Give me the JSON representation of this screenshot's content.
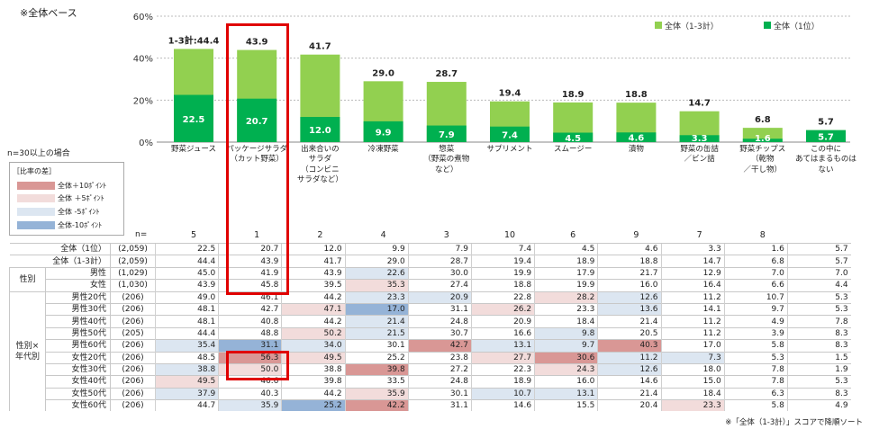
{
  "header": {
    "base_label": "※全体ベース"
  },
  "condition_note": "n=30以上の場合",
  "legend": {
    "title": "［比率の差］",
    "items": [
      {
        "label": "全体＋10ﾎﾟｲﾝﾄ",
        "color": "#d99795"
      },
      {
        "label": "全体 ＋5ﾎﾟｲﾝﾄ",
        "color": "#f2dcdb"
      },
      {
        "label": "全体 -5ﾎﾟｲﾝﾄ",
        "color": "#dce6f1"
      },
      {
        "label": "全体-10ﾎﾟｲﾝﾄ",
        "color": "#95b3d7"
      }
    ]
  },
  "colors": {
    "total_3": "#92d050",
    "total_1": "#00b050",
    "plus10": "#d99795",
    "plus5": "#f2dcdb",
    "minus5": "#dce6f1",
    "minus10": "#95b3d7",
    "highlight": "#e00000"
  },
  "n_label": "n=",
  "footnote": "※「全体（1-3計）」スコアで降順ソート",
  "chart_data": {
    "type": "bar",
    "categories": [
      "野菜ジュース",
      "パッケージサラダ\n（カット野菜）",
      "出来合いの\nサラダ\n（コンビニ\nサラダなど）",
      "冷凍野菜",
      "惣菜\n（野菜の煮物\nなど）",
      "サプリメント",
      "スムージー",
      "漬物",
      "野菜の缶詰\n／ビン詰",
      "野菜チップス\n（乾物\n／干し物）",
      "この中に\nあてはまるものは\nない"
    ],
    "series": [
      {
        "name": "全体（1-3計）",
        "values": [
          44.4,
          43.9,
          41.7,
          29.0,
          28.7,
          19.4,
          18.9,
          18.8,
          14.7,
          6.8,
          5.7
        ]
      },
      {
        "name": "全体（1位）",
        "values": [
          22.5,
          20.7,
          12.0,
          9.9,
          7.9,
          7.4,
          4.5,
          4.6,
          3.3,
          1.6,
          5.7
        ]
      }
    ],
    "first_label_prefix": "1-3計:",
    "yticks": [
      "0%",
      "20%",
      "40%",
      "60%"
    ],
    "ylim": [
      0,
      60
    ],
    "grid": true,
    "legend_position": "top-right",
    "ranks": [
      "5",
      "1",
      "2",
      "4",
      "3",
      "10",
      "6",
      "9",
      "7",
      "8",
      ""
    ]
  },
  "table": {
    "rows": [
      {
        "group": "",
        "label": "全体（1位）",
        "n": "(2,059)",
        "values": [
          "22.5",
          "20.7",
          "12.0",
          "9.9",
          "7.9",
          "7.4",
          "4.5",
          "4.6",
          "3.3",
          "1.6",
          "5.7"
        ],
        "levels": [
          0,
          0,
          0,
          0,
          0,
          0,
          0,
          0,
          0,
          0,
          0
        ]
      },
      {
        "group": "",
        "label": "全体（1-3計）",
        "n": "(2,059)",
        "values": [
          "44.4",
          "43.9",
          "41.7",
          "29.0",
          "28.7",
          "19.4",
          "18.9",
          "18.8",
          "14.7",
          "6.8",
          "5.7"
        ],
        "levels": [
          0,
          0,
          0,
          0,
          0,
          0,
          0,
          0,
          0,
          0,
          0
        ]
      },
      {
        "group": "性別",
        "label": "男性",
        "n": "(1,029)",
        "values": [
          "45.0",
          "41.9",
          "43.9",
          "22.6",
          "30.0",
          "19.9",
          "17.9",
          "21.7",
          "12.9",
          "7.0",
          "7.0"
        ],
        "levels": [
          0,
          0,
          0,
          -1,
          0,
          0,
          0,
          0,
          0,
          0,
          0
        ]
      },
      {
        "group": "性別",
        "label": "女性",
        "n": "(1,030)",
        "values": [
          "43.9",
          "45.8",
          "39.5",
          "35.3",
          "27.4",
          "18.8",
          "19.9",
          "16.0",
          "16.4",
          "6.6",
          "4.4"
        ],
        "levels": [
          0,
          0,
          0,
          1,
          0,
          0,
          0,
          0,
          0,
          0,
          0
        ]
      },
      {
        "group": "性別×年代別",
        "label": "男性20代",
        "n": "(206)",
        "values": [
          "49.0",
          "46.1",
          "44.2",
          "23.3",
          "20.9",
          "22.8",
          "28.2",
          "12.6",
          "11.2",
          "10.7",
          "5.3"
        ],
        "levels": [
          0,
          0,
          0,
          -1,
          -1,
          0,
          1,
          -1,
          0,
          0,
          0
        ]
      },
      {
        "group": "性別×年代別",
        "label": "男性30代",
        "n": "(206)",
        "values": [
          "48.1",
          "42.7",
          "47.1",
          "17.0",
          "31.1",
          "26.2",
          "23.3",
          "13.6",
          "14.1",
          "9.7",
          "5.3"
        ],
        "levels": [
          0,
          0,
          1,
          -2,
          0,
          1,
          0,
          -1,
          0,
          0,
          0
        ]
      },
      {
        "group": "性別×年代別",
        "label": "男性40代",
        "n": "(206)",
        "values": [
          "48.1",
          "40.8",
          "44.2",
          "21.4",
          "24.8",
          "20.9",
          "18.4",
          "21.4",
          "11.2",
          "4.9",
          "7.8"
        ],
        "levels": [
          0,
          0,
          0,
          -1,
          0,
          0,
          0,
          0,
          0,
          0,
          0
        ]
      },
      {
        "group": "性別×年代別",
        "label": "男性50代",
        "n": "(205)",
        "values": [
          "44.4",
          "48.8",
          "50.2",
          "21.5",
          "30.7",
          "16.6",
          "9.8",
          "20.5",
          "11.2",
          "3.9",
          "8.3"
        ],
        "levels": [
          0,
          0,
          1,
          -1,
          0,
          0,
          -1,
          0,
          0,
          0,
          0
        ]
      },
      {
        "group": "性別×年代別",
        "label": "男性60代",
        "n": "(206)",
        "values": [
          "35.4",
          "31.1",
          "34.0",
          "30.1",
          "42.7",
          "13.1",
          "9.7",
          "40.3",
          "17.0",
          "5.8",
          "8.3"
        ],
        "levels": [
          -1,
          -2,
          -1,
          0,
          2,
          -1,
          -1,
          2,
          0,
          0,
          0
        ]
      },
      {
        "group": "性別×年代別",
        "label": "女性20代",
        "n": "(206)",
        "values": [
          "48.5",
          "56.3",
          "49.5",
          "25.2",
          "23.8",
          "27.7",
          "30.6",
          "11.2",
          "7.3",
          "5.3",
          "1.5"
        ],
        "levels": [
          0,
          2,
          1,
          0,
          0,
          1,
          2,
          -1,
          -1,
          0,
          0
        ]
      },
      {
        "group": "性別×年代別",
        "label": "女性30代",
        "n": "(206)",
        "values": [
          "38.8",
          "50.0",
          "38.8",
          "39.8",
          "27.2",
          "22.3",
          "24.3",
          "12.6",
          "18.0",
          "7.8",
          "1.9"
        ],
        "levels": [
          -1,
          1,
          0,
          2,
          0,
          0,
          1,
          -1,
          0,
          0,
          0
        ]
      },
      {
        "group": "性別×年代別",
        "label": "女性40代",
        "n": "(206)",
        "values": [
          "49.5",
          "46.6",
          "39.8",
          "33.5",
          "24.8",
          "18.9",
          "16.0",
          "14.6",
          "15.0",
          "7.8",
          "5.3"
        ],
        "levels": [
          1,
          0,
          0,
          0,
          0,
          0,
          0,
          0,
          0,
          0,
          0
        ]
      },
      {
        "group": "性別×年代別",
        "label": "女性50代",
        "n": "(206)",
        "values": [
          "37.9",
          "40.3",
          "44.2",
          "35.9",
          "30.1",
          "10.7",
          "13.1",
          "21.4",
          "18.4",
          "6.3",
          "8.3"
        ],
        "levels": [
          -1,
          0,
          0,
          1,
          0,
          -1,
          -1,
          0,
          0,
          0,
          0
        ]
      },
      {
        "group": "性別×年代別",
        "label": "女性60代",
        "n": "(206)",
        "values": [
          "44.7",
          "35.9",
          "25.2",
          "42.2",
          "31.1",
          "14.6",
          "15.5",
          "20.4",
          "23.3",
          "5.8",
          "4.9"
        ],
        "levels": [
          0,
          -1,
          -2,
          2,
          0,
          0,
          0,
          0,
          1,
          0,
          0
        ]
      }
    ]
  }
}
